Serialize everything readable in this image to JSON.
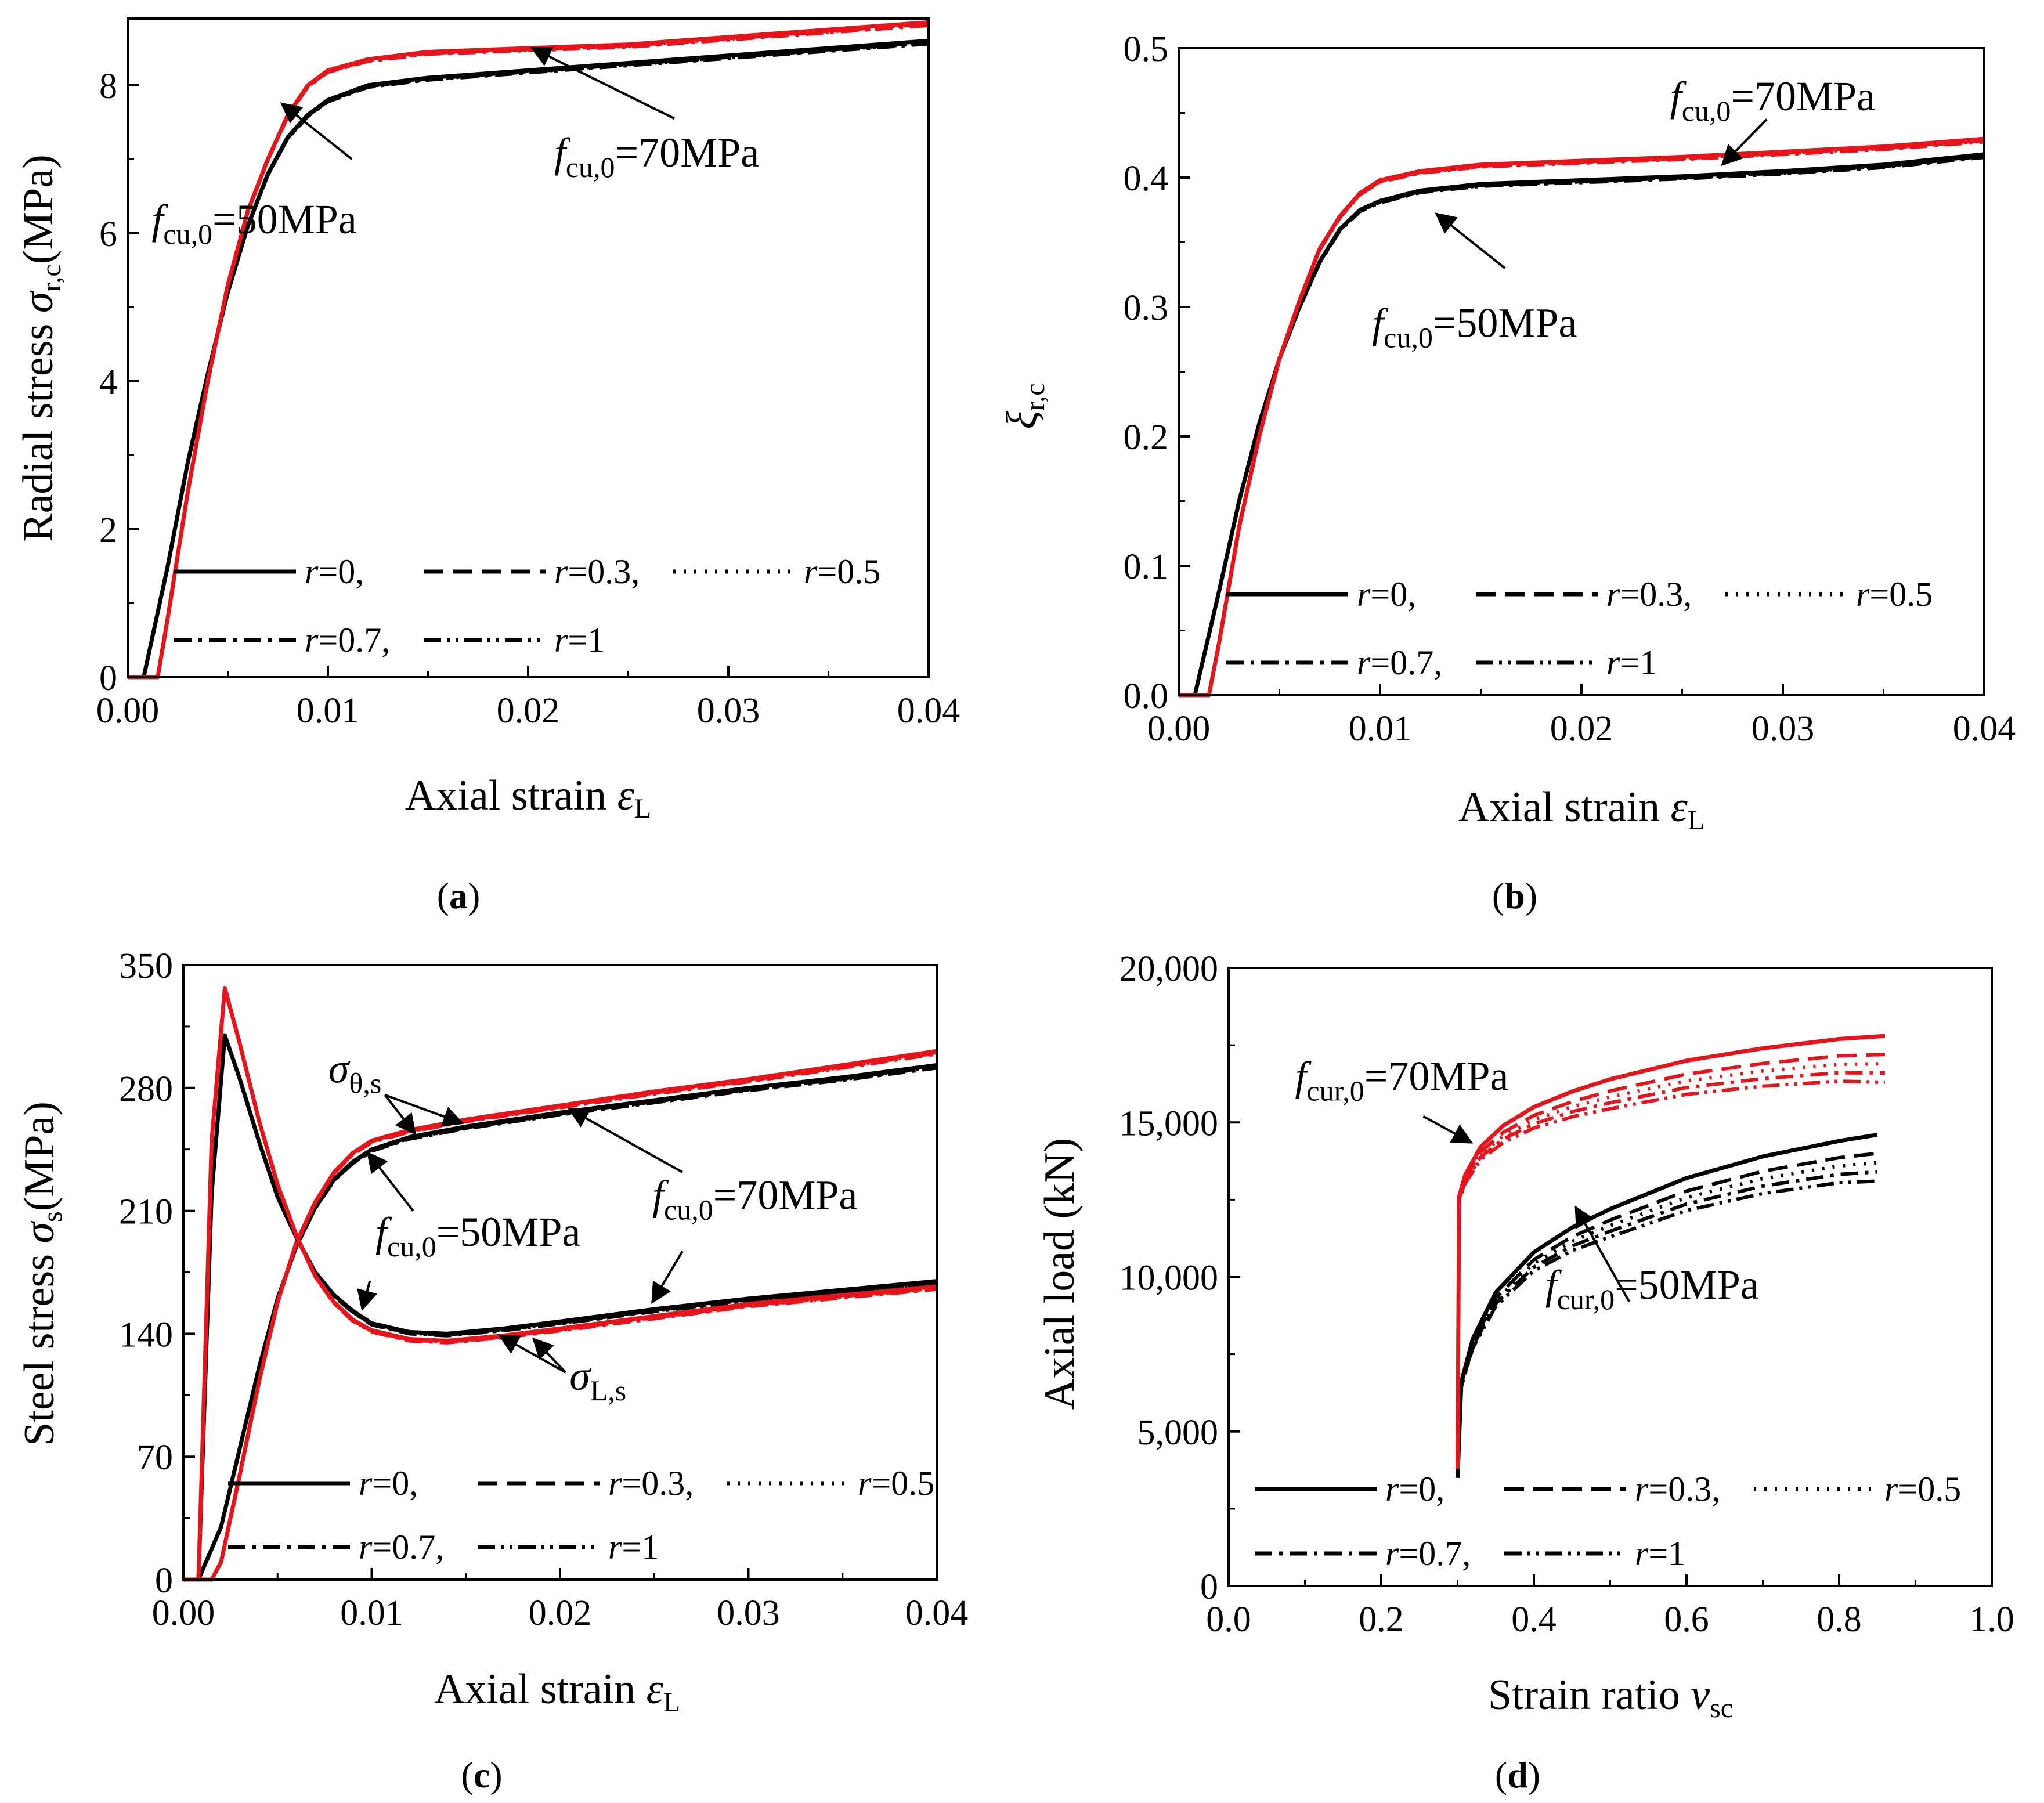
{
  "colors": {
    "black": "#000000",
    "red": "#e8141c",
    "axis": "#000000"
  },
  "legend_rows": [
    [
      {
        "style": "solid",
        "label": "r=0,"
      },
      {
        "style": "dash",
        "label": "r=0.3,"
      },
      {
        "style": "dot",
        "label": "r=0.5"
      }
    ],
    [
      {
        "style": "dashdot",
        "label": "r=0.7,"
      },
      {
        "style": "dashdotdot",
        "label": "r=1"
      }
    ]
  ],
  "chart_data": [
    {
      "id": "a",
      "type": "line",
      "caption": "(a)",
      "caption_letter": "a",
      "xlabel": "Axial strain εL",
      "ylabel": "Radial stress σr,c(MPa)",
      "xlim": [
        0,
        0.04
      ],
      "ylim": [
        0,
        8.9
      ],
      "xticks": [
        0,
        0.01,
        0.02,
        0.03,
        0.04
      ],
      "xtick_labels": [
        "0.00",
        "0.01",
        "0.02",
        "0.03",
        "0.04"
      ],
      "yticks": [
        0,
        2,
        4,
        6,
        8
      ],
      "ytick_labels": [
        "0",
        "2",
        "4",
        "6",
        "8"
      ],
      "series": [
        {
          "name": "fcu,0=50MPa",
          "color": "#000000",
          "x": [
            0,
            0.0008,
            0.002,
            0.003,
            0.004,
            0.005,
            0.006,
            0.007,
            0.008,
            0.009,
            0.01,
            0.012,
            0.015,
            0.02,
            0.025,
            0.03,
            0.035,
            0.04
          ],
          "y": [
            0,
            0,
            1.5,
            2.9,
            4.1,
            5.2,
            6.1,
            6.8,
            7.3,
            7.6,
            7.8,
            8.0,
            8.1,
            8.2,
            8.3,
            8.4,
            8.5,
            8.6
          ]
        },
        {
          "name": "fcu,0=70MPa",
          "color": "#e8141c",
          "x": [
            0,
            0.0015,
            0.002,
            0.003,
            0.004,
            0.005,
            0.006,
            0.007,
            0.008,
            0.009,
            0.01,
            0.012,
            0.015,
            0.02,
            0.025,
            0.03,
            0.035,
            0.04
          ],
          "y": [
            0,
            0,
            0.8,
            2.5,
            4.0,
            5.3,
            6.3,
            7.0,
            7.6,
            8.0,
            8.2,
            8.35,
            8.45,
            8.5,
            8.55,
            8.65,
            8.75,
            8.85
          ]
        }
      ],
      "annotations": [
        {
          "pre": "f",
          "sub": "cu,0",
          "post": "=50MPa",
          "tx": 0.0012,
          "ty": 6.0,
          "ax": 0.0112,
          "ay": 7.0,
          "bx": 0.0077,
          "by": 7.75
        },
        {
          "pre": "f",
          "sub": "cu,0",
          "post": "=70MPa",
          "tx": 0.0213,
          "ty": 6.9,
          "ax": 0.0273,
          "ay": 7.55,
          "bx": 0.0202,
          "by": 8.5
        }
      ]
    },
    {
      "id": "b",
      "type": "line",
      "caption": "(b)",
      "caption_letter": "b",
      "xlabel": "Axial strain εL",
      "ylabel": "ξr,c",
      "xlim": [
        0,
        0.04
      ],
      "ylim": [
        0,
        0.5
      ],
      "xticks": [
        0,
        0.01,
        0.02,
        0.03,
        0.04
      ],
      "xtick_labels": [
        "0.00",
        "0.01",
        "0.02",
        "0.03",
        "0.04"
      ],
      "yticks": [
        0,
        0.1,
        0.2,
        0.3,
        0.4,
        0.5
      ],
      "ytick_labels": [
        "0.0",
        "0.1",
        "0.2",
        "0.3",
        "0.4",
        "0.5"
      ],
      "series": [
        {
          "name": "fcu,0=50MPa",
          "color": "#000000",
          "x": [
            0,
            0.0008,
            0.002,
            0.003,
            0.004,
            0.005,
            0.006,
            0.007,
            0.008,
            0.009,
            0.01,
            0.012,
            0.015,
            0.02,
            0.025,
            0.03,
            0.035,
            0.04
          ],
          "y": [
            0,
            0,
            0.08,
            0.15,
            0.21,
            0.26,
            0.3,
            0.335,
            0.36,
            0.375,
            0.382,
            0.39,
            0.395,
            0.398,
            0.401,
            0.405,
            0.41,
            0.418
          ]
        },
        {
          "name": "fcu,0=70MPa",
          "color": "#e8141c",
          "x": [
            0,
            0.0015,
            0.002,
            0.003,
            0.004,
            0.005,
            0.006,
            0.007,
            0.008,
            0.009,
            0.01,
            0.012,
            0.015,
            0.02,
            0.025,
            0.03,
            0.035,
            0.04
          ],
          "y": [
            0,
            0,
            0.04,
            0.13,
            0.2,
            0.26,
            0.305,
            0.345,
            0.37,
            0.388,
            0.398,
            0.405,
            0.41,
            0.413,
            0.416,
            0.42,
            0.424,
            0.43
          ]
        }
      ],
      "annotations": [
        {
          "pre": "f",
          "sub": "cu,0",
          "post": "=70MPa",
          "tx": 0.0244,
          "ty": 0.452,
          "ax": 0.0292,
          "ay": 0.445,
          "bx": 0.027,
          "by": 0.41
        },
        {
          "pre": "f",
          "sub": "cu,0",
          "post": "=50MPa",
          "tx": 0.0096,
          "ty": 0.277,
          "ax": 0.0162,
          "ay": 0.33,
          "bx": 0.0128,
          "by": 0.372
        }
      ]
    },
    {
      "id": "c",
      "type": "line",
      "caption": "(c)",
      "caption_letter": "c",
      "xlabel": "Axial strain εL",
      "ylabel": "Steel stress σs(MPa)",
      "xlim": [
        0,
        0.04
      ],
      "ylim": [
        0,
        350
      ],
      "xticks": [
        0,
        0.01,
        0.02,
        0.03,
        0.04
      ],
      "xtick_labels": [
        "0.00",
        "0.01",
        "0.02",
        "0.03",
        "0.04"
      ],
      "yticks": [
        0,
        70,
        140,
        210,
        280,
        350
      ],
      "ytick_labels": [
        "0",
        "70",
        "140",
        "210",
        "280",
        "350"
      ],
      "series": [
        {
          "name": "σθ,s 50MPa",
          "color": "#000000",
          "x": [
            0,
            0.0008,
            0.002,
            0.003,
            0.004,
            0.005,
            0.006,
            0.007,
            0.008,
            0.009,
            0.01,
            0.012,
            0.015,
            0.02,
            0.025,
            0.03,
            0.035,
            0.04
          ],
          "y": [
            0,
            0,
            30,
            75,
            120,
            160,
            190,
            212,
            228,
            238,
            245,
            252,
            258,
            266,
            273,
            280,
            286,
            293
          ]
        },
        {
          "name": "σθ,s 70MPa",
          "color": "#e8141c",
          "x": [
            0,
            0.0015,
            0.002,
            0.003,
            0.004,
            0.005,
            0.006,
            0.007,
            0.008,
            0.009,
            0.01,
            0.012,
            0.015,
            0.02,
            0.025,
            0.03,
            0.035,
            0.04
          ],
          "y": [
            0,
            0,
            10,
            60,
            112,
            158,
            192,
            215,
            232,
            243,
            250,
            256,
            262,
            270,
            278,
            285,
            293,
            301
          ]
        },
        {
          "name": "σL,s 50MPa",
          "color": "#000000",
          "x": [
            0.0008,
            0.0015,
            0.0022,
            0.003,
            0.004,
            0.005,
            0.006,
            0.007,
            0.008,
            0.009,
            0.01,
            0.012,
            0.014,
            0.017,
            0.02,
            0.025,
            0.03,
            0.035,
            0.04
          ],
          "y": [
            0,
            220,
            310,
            285,
            250,
            218,
            195,
            175,
            162,
            153,
            146,
            141,
            140,
            143,
            147,
            154,
            160,
            165,
            170
          ]
        },
        {
          "name": "σL,s 70MPa",
          "color": "#e8141c",
          "x": [
            0.0008,
            0.0015,
            0.0022,
            0.003,
            0.004,
            0.005,
            0.006,
            0.007,
            0.008,
            0.009,
            0.01,
            0.012,
            0.014,
            0.017,
            0.02,
            0.025,
            0.03,
            0.035,
            0.04
          ],
          "y": [
            0,
            250,
            337,
            305,
            262,
            225,
            196,
            173,
            158,
            148,
            142,
            137,
            136,
            139,
            143,
            150,
            157,
            162,
            167
          ]
        }
      ],
      "annotations": [
        {
          "pre": "σ",
          "sub": "θ,s",
          "post": "",
          "tx": 0.0077,
          "ty": 283,
          "ax": 0.0107,
          "ay": 276,
          "bx": 0.0123,
          "by": 254,
          "cx": 0.0148,
          "cy": 260
        },
        {
          "pre": "f",
          "sub": "cu,0",
          "post": "=50MPa",
          "tx": 0.0102,
          "ty": 190,
          "ax": 0.0122,
          "ay": 210,
          "bx": 0.0098,
          "by": 243
        },
        {
          "pre": "f",
          "sub": "cu,0",
          "post": "=70MPa",
          "tx": 0.0249,
          "ty": 211,
          "ax": 0.0265,
          "ay": 232,
          "bx": 0.0205,
          "by": 268
        },
        {
          "pre": "f",
          "sub": "cu,0",
          "post": "",
          "tx": 0,
          "ty": 0,
          "ax": 0.0265,
          "ay": 187,
          "bx": 0.0249,
          "by": 158
        },
        {
          "pre": "f",
          "sub": "cu,0",
          "post": "",
          "tx": 0,
          "ty": 0,
          "ax": 0.0099,
          "ay": 170,
          "bx": 0.0095,
          "by": 154
        },
        {
          "pre": "σ",
          "sub": "L,s",
          "post": "",
          "tx": 0.0205,
          "ty": 108,
          "ax": 0.0203,
          "ay": 118,
          "bx": 0.0168,
          "by": 139,
          "cx": 0.0186,
          "cy": 137
        }
      ]
    },
    {
      "id": "d",
      "type": "line",
      "caption": "(d)",
      "caption_letter": "d",
      "xlabel": "Strain ratio νsc",
      "ylabel": "Axial load (kN)",
      "xlim": [
        0,
        1.0
      ],
      "ylim": [
        0,
        20000
      ],
      "xticks": [
        0,
        0.2,
        0.4,
        0.6,
        0.8,
        1.0
      ],
      "xtick_labels": [
        "0.0",
        "0.2",
        "0.4",
        "0.6",
        "0.8",
        "1.0"
      ],
      "yticks": [
        0,
        5000,
        10000,
        15000,
        20000
      ],
      "ytick_labels": [
        "0",
        "5,000",
        "10,000",
        "15,000",
        "20,000"
      ],
      "series": [
        {
          "name": "fcur,0=50MPa",
          "color": "#000000",
          "x": [
            0.3,
            0.305,
            0.32,
            0.35,
            0.4,
            0.45,
            0.5,
            0.6,
            0.7,
            0.8,
            0.85
          ],
          "y": [
            3500,
            6600,
            8000,
            9500,
            10800,
            11600,
            12200,
            13200,
            13900,
            14400,
            14600
          ]
        },
        {
          "name": "fcur,0=70MPa",
          "color": "#e8141c",
          "x": [
            0.3,
            0.302,
            0.31,
            0.33,
            0.36,
            0.4,
            0.45,
            0.5,
            0.6,
            0.7,
            0.8,
            0.86
          ],
          "y": [
            3800,
            12600,
            13300,
            14200,
            14900,
            15500,
            16000,
            16400,
            17000,
            17400,
            17700,
            17800
          ]
        }
      ],
      "annotations": [
        {
          "pre": "f",
          "sub": "cur,0",
          "post": "=70MPa",
          "tx": 0.087,
          "ty": 16050,
          "ax": 0.255,
          "ay": 15200,
          "bx": 0.318,
          "by": 14350
        },
        {
          "pre": "f",
          "sub": "cur,0",
          "post": "=50MPa",
          "tx": 0.415,
          "ty": 9300,
          "ax": 0.525,
          "ay": 9200,
          "bx": 0.455,
          "by": 12250
        }
      ]
    }
  ]
}
